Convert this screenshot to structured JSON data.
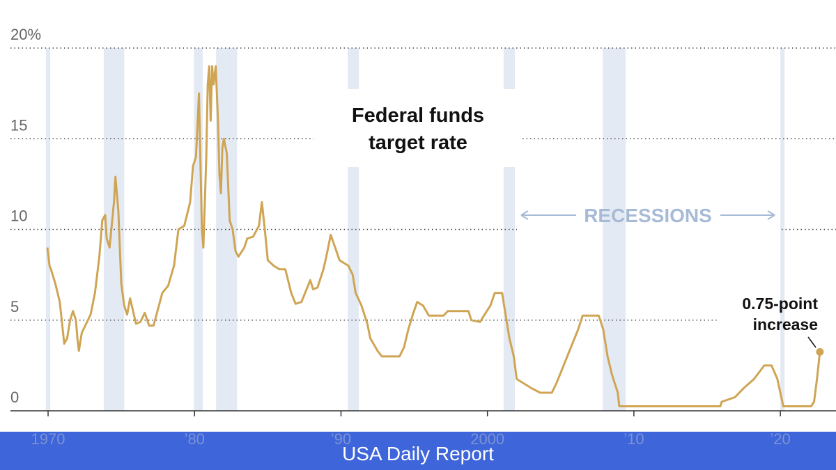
{
  "chart_data": {
    "type": "line",
    "line_label": [
      "Federal funds",
      "target rate"
    ],
    "x": [
      1969.95,
      1970.1,
      1970.2,
      1970.5,
      1970.8,
      1971.0,
      1971.1,
      1971.3,
      1971.5,
      1971.7,
      1971.9,
      1972.0,
      1972.1,
      1972.3,
      1972.6,
      1972.9,
      1973.2,
      1973.5,
      1973.7,
      1973.9,
      1974.0,
      1974.2,
      1974.5,
      1974.6,
      1974.8,
      1975.0,
      1975.2,
      1975.4,
      1975.6,
      1975.8,
      1976.0,
      1976.3,
      1976.6,
      1976.9,
      1977.2,
      1977.5,
      1977.8,
      1978.2,
      1978.6,
      1978.9,
      1979.3,
      1979.7,
      1979.9,
      1980.1,
      1980.3,
      1980.5,
      1980.6,
      1980.8,
      1980.9,
      1981.0,
      1981.1,
      1981.2,
      1981.3,
      1981.45,
      1981.6,
      1981.7,
      1981.8,
      1981.9,
      1982.0,
      1982.2,
      1982.4,
      1982.6,
      1982.8,
      1983.0,
      1983.4,
      1983.6,
      1984.0,
      1984.4,
      1984.6,
      1984.8,
      1985.0,
      1985.4,
      1985.8,
      1986.2,
      1986.6,
      1986.9,
      1987.3,
      1987.6,
      1987.9,
      1988.1,
      1988.4,
      1988.8,
      1989.0,
      1989.3,
      1989.6,
      1989.9,
      1990.5,
      1990.8,
      1991.0,
      1991.4,
      1991.8,
      1992.0,
      1992.5,
      1992.8,
      1994.0,
      1994.3,
      1994.6,
      1994.9,
      1995.2,
      1995.6,
      1996.0,
      1997.0,
      1997.3,
      1998.7,
      1998.9,
      1999.5,
      1999.8,
      2000.2,
      2000.5,
      2001.0,
      2001.3,
      2001.5,
      2001.8,
      2002.0,
      2003.0,
      2003.6,
      2004.4,
      2004.7,
      2005.2,
      2005.7,
      2006.2,
      2006.5,
      2007.6,
      2007.9,
      2008.2,
      2008.5,
      2008.9,
      2009.0,
      2015.9,
      2016.0,
      2016.9,
      2017.5,
      2018.2,
      2018.9,
      2019.4,
      2019.8,
      2020.2,
      2022.1,
      2022.3,
      2022.5,
      2022.6,
      2022.7
    ],
    "values": [
      9.0,
      8.0,
      7.8,
      7.0,
      6.0,
      4.5,
      3.7,
      4.0,
      5.0,
      5.5,
      5.0,
      4.0,
      3.3,
      4.3,
      4.8,
      5.3,
      6.5,
      8.5,
      10.5,
      10.8,
      9.5,
      9.0,
      11.5,
      12.9,
      11.0,
      7.0,
      5.8,
      5.3,
      6.2,
      5.5,
      4.8,
      4.9,
      5.4,
      4.7,
      4.7,
      5.6,
      6.5,
      6.9,
      8.0,
      10.0,
      10.2,
      11.5,
      13.5,
      14.0,
      17.5,
      10.0,
      9.0,
      14.0,
      18.0,
      19.0,
      16.0,
      19.0,
      18.0,
      19.0,
      16.0,
      13.0,
      12.0,
      14.5,
      15.0,
      14.2,
      10.5,
      10.0,
      8.8,
      8.5,
      9.0,
      9.5,
      9.6,
      10.2,
      11.5,
      10.0,
      8.3,
      8.0,
      7.8,
      7.8,
      6.5,
      5.9,
      6.0,
      6.6,
      7.2,
      6.7,
      6.8,
      7.8,
      8.5,
      9.7,
      9.0,
      8.3,
      8.0,
      7.5,
      6.5,
      5.8,
      4.8,
      4.0,
      3.3,
      3.0,
      3.0,
      3.5,
      4.5,
      5.3,
      6.0,
      5.8,
      5.25,
      5.25,
      5.5,
      5.5,
      5.0,
      4.9,
      5.3,
      5.8,
      6.5,
      6.5,
      5.0,
      4.0,
      3.0,
      1.75,
      1.25,
      1.0,
      1.0,
      1.5,
      2.5,
      3.5,
      4.5,
      5.25,
      5.25,
      4.5,
      3.0,
      2.0,
      1.0,
      0.25,
      0.25,
      0.5,
      0.75,
      1.25,
      1.75,
      2.5,
      2.5,
      1.75,
      0.25,
      0.25,
      0.5,
      1.75,
      2.5,
      3.25
    ],
    "color": "#cfa554",
    "recessions": [
      [
        1969.85,
        1970.15
      ],
      [
        1973.8,
        1975.2
      ],
      [
        1979.95,
        1980.56
      ],
      [
        1981.47,
        1982.9
      ],
      [
        1990.46,
        1991.22
      ],
      [
        2001.1,
        2001.87
      ],
      [
        2007.87,
        2009.44
      ],
      [
        2020.0,
        2020.29
      ]
    ],
    "recession_label": "RECESSIONS",
    "recession_color": "#e4eaf3",
    "annotation": [
      "0.75-point",
      "increase"
    ],
    "xlim": [
      1967.43,
      2023.8
    ],
    "ylim": [
      0,
      20
    ],
    "xticks": [
      1970,
      {
        "value": 1980,
        "label": "’80"
      },
      {
        "value": 1990,
        "label": "’90"
      },
      2000,
      {
        "value": 2010,
        "label": "’10"
      },
      {
        "value": 2020,
        "label": "’20"
      }
    ],
    "yticks": [
      {
        "value": 20,
        "label": "20%"
      },
      15,
      10,
      5,
      0
    ],
    "grid": true
  },
  "footer": "USA Daily Report"
}
